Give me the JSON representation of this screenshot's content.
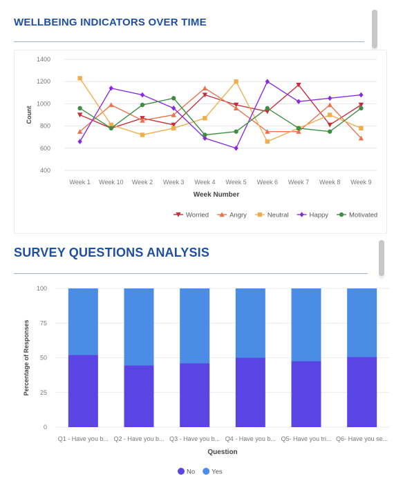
{
  "sections": {
    "wellbeing_title": "WELLBEING INDICATORS OVER TIME",
    "survey_title": "SURVEY QUESTIONS ANALYSIS"
  },
  "chart_data": [
    {
      "type": "line",
      "x": [
        "Week 1",
        "Week 10",
        "Week 2",
        "Week 3",
        "Week 4",
        "Week 5",
        "Week 6",
        "Week 7",
        "Week 8",
        "Week 9"
      ],
      "xlabel": "Week Number",
      "ylabel": "Count",
      "ylim": [
        400,
        1400
      ],
      "yticks": [
        400,
        600,
        800,
        1000,
        1200,
        1400
      ],
      "grid": "horizontal",
      "legend_position": "bottom-right",
      "series": [
        {
          "name": "Worried",
          "color": "#c62f3a",
          "marker": "triangle-down",
          "values": [
            900,
            780,
            870,
            810,
            1080,
            990,
            930,
            1170,
            810,
            990
          ]
        },
        {
          "name": "Angry",
          "color": "#e8744f",
          "marker": "triangle-up",
          "values": [
            750,
            990,
            850,
            900,
            1140,
            960,
            750,
            750,
            990,
            690
          ]
        },
        {
          "name": "Neutral",
          "color": "#f0ad4e",
          "marker": "square",
          "values": [
            1230,
            810,
            720,
            780,
            870,
            1200,
            660,
            780,
            900,
            780
          ]
        },
        {
          "name": "Happy",
          "color": "#8a2be2",
          "marker": "diamond",
          "values": [
            660,
            1140,
            1080,
            960,
            690,
            600,
            1200,
            1020,
            1050,
            1080
          ]
        },
        {
          "name": "Motivated",
          "color": "#3e8e41",
          "marker": "circle",
          "values": [
            960,
            780,
            990,
            1050,
            720,
            750,
            960,
            780,
            750,
            960
          ]
        }
      ]
    },
    {
      "type": "bar",
      "stacked": true,
      "categories": [
        "Q1 - Have you b...",
        "Q2 - Have you b...",
        "Q3 - Have you b...",
        "Q4 - Have you b...",
        "Q5- Have you tri...",
        "Q6- Have you se..."
      ],
      "xlabel": "Question",
      "ylabel": "Percentage of Responses",
      "ylim": [
        0,
        100
      ],
      "yticks": [
        0,
        25,
        50,
        75,
        100
      ],
      "grid": "horizontal",
      "legend_position": "bottom-center",
      "series": [
        {
          "name": "No",
          "color": "#5b44e4",
          "values": [
            52,
            44.5,
            46,
            50,
            47.5,
            50.5
          ]
        },
        {
          "name": "Yes",
          "color": "#4a8ce6",
          "values": [
            48,
            55.5,
            54,
            50,
            52.5,
            49.5
          ]
        }
      ]
    }
  ]
}
